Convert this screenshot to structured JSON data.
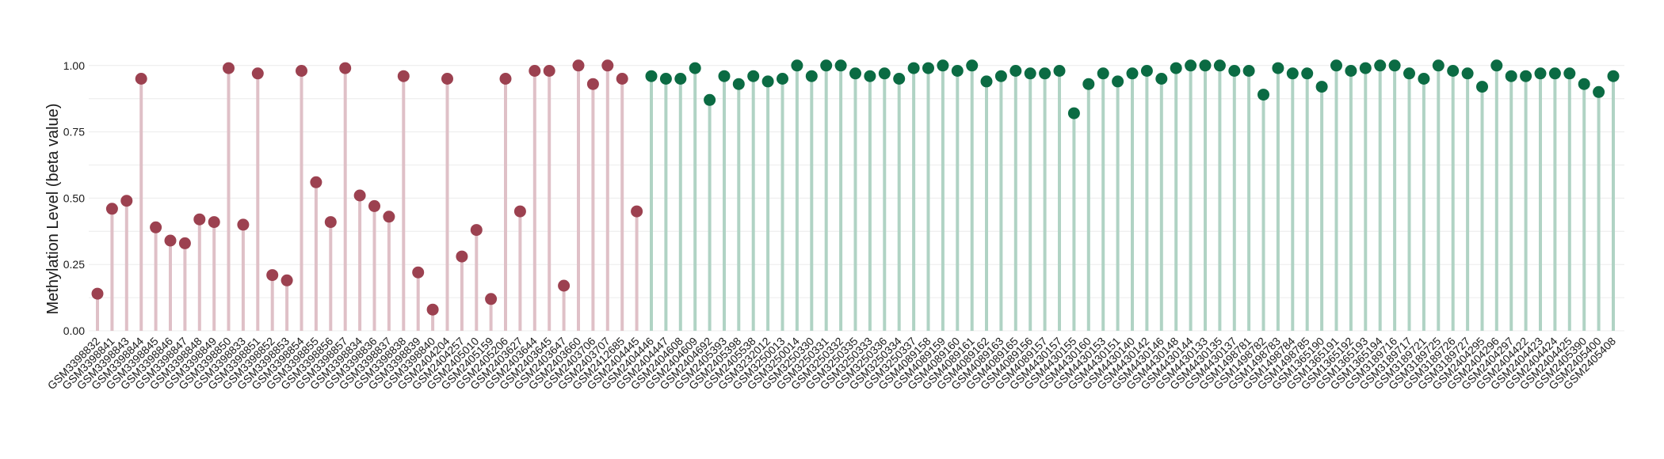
{
  "chart_data": {
    "type": "lollipop",
    "title": "",
    "xlabel": "",
    "ylabel": "Methylation Level (beta value)",
    "ylim": [
      0,
      1.05
    ],
    "yticks": [
      0,
      0.25,
      0.5,
      0.75,
      1
    ],
    "ytick_labels": [
      "0.00",
      "0.25",
      "0.50",
      "0.75",
      "1.00"
    ],
    "grid": true,
    "legend": "none",
    "colors": {
      "group_a_point": "#9c4150",
      "group_a_stem": "#dfc0c7",
      "group_b_point": "#0b6b43",
      "group_b_stem": "#b0d3c4"
    },
    "points": [
      {
        "x": "GSM3398832",
        "y": 0.14,
        "group": "a"
      },
      {
        "x": "GSM3398841",
        "y": 0.46,
        "group": "a"
      },
      {
        "x": "GSM3398843",
        "y": 0.49,
        "group": "a"
      },
      {
        "x": "GSM3398844",
        "y": 0.95,
        "group": "a"
      },
      {
        "x": "GSM3398845",
        "y": 0.39,
        "group": "a"
      },
      {
        "x": "GSM3398846",
        "y": 0.34,
        "group": "a"
      },
      {
        "x": "GSM3398847",
        "y": 0.33,
        "group": "a"
      },
      {
        "x": "GSM3398848",
        "y": 0.42,
        "group": "a"
      },
      {
        "x": "GSM3398849",
        "y": 0.41,
        "group": "a"
      },
      {
        "x": "GSM3398850",
        "y": 0.99,
        "group": "a"
      },
      {
        "x": "GSM3398833",
        "y": 0.4,
        "group": "a"
      },
      {
        "x": "GSM3398851",
        "y": 0.97,
        "group": "a"
      },
      {
        "x": "GSM3398852",
        "y": 0.21,
        "group": "a"
      },
      {
        "x": "GSM3398853",
        "y": 0.19,
        "group": "a"
      },
      {
        "x": "GSM3398854",
        "y": 0.98,
        "group": "a"
      },
      {
        "x": "GSM3398855",
        "y": 0.56,
        "group": "a"
      },
      {
        "x": "GSM3398856",
        "y": 0.41,
        "group": "a"
      },
      {
        "x": "GSM3398857",
        "y": 0.99,
        "group": "a"
      },
      {
        "x": "GSM3398834",
        "y": 0.51,
        "group": "a"
      },
      {
        "x": "GSM3398836",
        "y": 0.47,
        "group": "a"
      },
      {
        "x": "GSM3398837",
        "y": 0.43,
        "group": "a"
      },
      {
        "x": "GSM3398838",
        "y": 0.96,
        "group": "a"
      },
      {
        "x": "GSM3398839",
        "y": 0.22,
        "group": "a"
      },
      {
        "x": "GSM3398840",
        "y": 0.08,
        "group": "a"
      },
      {
        "x": "GSM2404204",
        "y": 0.95,
        "group": "a"
      },
      {
        "x": "GSM2404257",
        "y": 0.28,
        "group": "a"
      },
      {
        "x": "GSM2405010",
        "y": 0.38,
        "group": "a"
      },
      {
        "x": "GSM2405159",
        "y": 0.12,
        "group": "a"
      },
      {
        "x": "GSM2405206",
        "y": 0.95,
        "group": "a"
      },
      {
        "x": "GSM2403627",
        "y": 0.45,
        "group": "a"
      },
      {
        "x": "GSM2403644",
        "y": 0.98,
        "group": "a"
      },
      {
        "x": "GSM2403645",
        "y": 0.98,
        "group": "a"
      },
      {
        "x": "GSM2403647",
        "y": 0.17,
        "group": "a"
      },
      {
        "x": "GSM2403660",
        "y": 1.0,
        "group": "a"
      },
      {
        "x": "GSM2403706",
        "y": 0.93,
        "group": "a"
      },
      {
        "x": "GSM2403707",
        "y": 1.0,
        "group": "a"
      },
      {
        "x": "GSM2412685",
        "y": 0.95,
        "group": "a"
      },
      {
        "x": "GSM2404445",
        "y": 0.45,
        "group": "a"
      },
      {
        "x": "GSM2404446",
        "y": 0.96,
        "group": "b"
      },
      {
        "x": "GSM2404447",
        "y": 0.95,
        "group": "b"
      },
      {
        "x": "GSM2404608",
        "y": 0.95,
        "group": "b"
      },
      {
        "x": "GSM2404609",
        "y": 0.99,
        "group": "b"
      },
      {
        "x": "GSM2404692",
        "y": 0.87,
        "group": "b"
      },
      {
        "x": "GSM2405393",
        "y": 0.96,
        "group": "b"
      },
      {
        "x": "GSM2405398",
        "y": 0.93,
        "group": "b"
      },
      {
        "x": "GSM2405538",
        "y": 0.96,
        "group": "b"
      },
      {
        "x": "GSM3232012",
        "y": 0.94,
        "group": "b"
      },
      {
        "x": "GSM3250013",
        "y": 0.95,
        "group": "b"
      },
      {
        "x": "GSM3250014",
        "y": 1.0,
        "group": "b"
      },
      {
        "x": "GSM3250330",
        "y": 0.96,
        "group": "b"
      },
      {
        "x": "GSM3250331",
        "y": 1.0,
        "group": "b"
      },
      {
        "x": "GSM3250332",
        "y": 1.0,
        "group": "b"
      },
      {
        "x": "GSM3250335",
        "y": 0.97,
        "group": "b"
      },
      {
        "x": "GSM3250333",
        "y": 0.96,
        "group": "b"
      },
      {
        "x": "GSM3250336",
        "y": 0.97,
        "group": "b"
      },
      {
        "x": "GSM3250334",
        "y": 0.95,
        "group": "b"
      },
      {
        "x": "GSM3250337",
        "y": 0.99,
        "group": "b"
      },
      {
        "x": "GSM4089158",
        "y": 0.99,
        "group": "b"
      },
      {
        "x": "GSM4089159",
        "y": 1.0,
        "group": "b"
      },
      {
        "x": "GSM4089160",
        "y": 0.98,
        "group": "b"
      },
      {
        "x": "GSM4089161",
        "y": 1.0,
        "group": "b"
      },
      {
        "x": "GSM4089162",
        "y": 0.94,
        "group": "b"
      },
      {
        "x": "GSM4089163",
        "y": 0.96,
        "group": "b"
      },
      {
        "x": "GSM4089165",
        "y": 0.98,
        "group": "b"
      },
      {
        "x": "GSM4089156",
        "y": 0.97,
        "group": "b"
      },
      {
        "x": "GSM4089157",
        "y": 0.97,
        "group": "b"
      },
      {
        "x": "GSM4430157",
        "y": 0.98,
        "group": "b"
      },
      {
        "x": "GSM4430155",
        "y": 0.82,
        "group": "b"
      },
      {
        "x": "GSM4430160",
        "y": 0.93,
        "group": "b"
      },
      {
        "x": "GSM4430153",
        "y": 0.97,
        "group": "b"
      },
      {
        "x": "GSM4430151",
        "y": 0.94,
        "group": "b"
      },
      {
        "x": "GSM4430140",
        "y": 0.97,
        "group": "b"
      },
      {
        "x": "GSM4430142",
        "y": 0.98,
        "group": "b"
      },
      {
        "x": "GSM4430146",
        "y": 0.95,
        "group": "b"
      },
      {
        "x": "GSM4430148",
        "y": 0.99,
        "group": "b"
      },
      {
        "x": "GSM4430144",
        "y": 1.0,
        "group": "b"
      },
      {
        "x": "GSM4430133",
        "y": 1.0,
        "group": "b"
      },
      {
        "x": "GSM4430135",
        "y": 1.0,
        "group": "b"
      },
      {
        "x": "GSM4430137",
        "y": 0.98,
        "group": "b"
      },
      {
        "x": "GSM1498781",
        "y": 0.98,
        "group": "b"
      },
      {
        "x": "GSM1498782",
        "y": 0.89,
        "group": "b"
      },
      {
        "x": "GSM1498783",
        "y": 0.99,
        "group": "b"
      },
      {
        "x": "GSM1498784",
        "y": 0.97,
        "group": "b"
      },
      {
        "x": "GSM1498785",
        "y": 0.97,
        "group": "b"
      },
      {
        "x": "GSM1365190",
        "y": 0.92,
        "group": "b"
      },
      {
        "x": "GSM1365191",
        "y": 1.0,
        "group": "b"
      },
      {
        "x": "GSM1365192",
        "y": 0.98,
        "group": "b"
      },
      {
        "x": "GSM1365193",
        "y": 0.99,
        "group": "b"
      },
      {
        "x": "GSM1365194",
        "y": 1.0,
        "group": "b"
      },
      {
        "x": "GSM3189716",
        "y": 1.0,
        "group": "b"
      },
      {
        "x": "GSM3189717",
        "y": 0.97,
        "group": "b"
      },
      {
        "x": "GSM3189721",
        "y": 0.95,
        "group": "b"
      },
      {
        "x": "GSM3189725",
        "y": 1.0,
        "group": "b"
      },
      {
        "x": "GSM3189726",
        "y": 0.98,
        "group": "b"
      },
      {
        "x": "GSM3189727",
        "y": 0.97,
        "group": "b"
      },
      {
        "x": "GSM2404295",
        "y": 0.92,
        "group": "b"
      },
      {
        "x": "GSM2404296",
        "y": 1.0,
        "group": "b"
      },
      {
        "x": "GSM2404297",
        "y": 0.96,
        "group": "b"
      },
      {
        "x": "GSM2404422",
        "y": 0.96,
        "group": "b"
      },
      {
        "x": "GSM2404423",
        "y": 0.97,
        "group": "b"
      },
      {
        "x": "GSM2404424",
        "y": 0.97,
        "group": "b"
      },
      {
        "x": "GSM2404425",
        "y": 0.97,
        "group": "b"
      },
      {
        "x": "GSM2405390",
        "y": 0.93,
        "group": "b"
      },
      {
        "x": "GSM2405400",
        "y": 0.9,
        "group": "b"
      },
      {
        "x": "GSM2405408",
        "y": 0.96,
        "group": "b"
      }
    ]
  }
}
